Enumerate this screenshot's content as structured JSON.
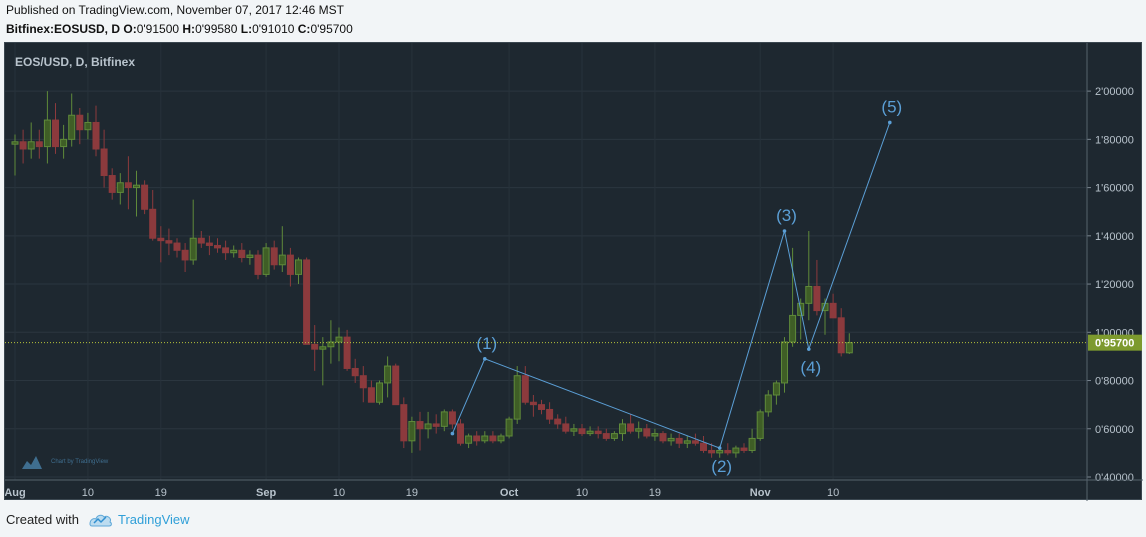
{
  "header": {
    "published": "Published on TradingView.com, November 07, 2017 12:46 MST",
    "symbol": "Bitfinex:EOSUSD, D",
    "o_label": "O:",
    "o_value": "0'91500",
    "h_label": "H:",
    "h_value": "0'99580",
    "l_label": "L:",
    "l_value": "0'91010",
    "c_label": "C:",
    "c_value": "0'95700"
  },
  "footer": {
    "created_with": "Created with",
    "brand": "TradingView"
  },
  "watermark": "Chart by TradingView",
  "colors": {
    "background": "#1e2830",
    "up": "#5f8a3a",
    "up_fill": "#3f5e26",
    "down": "#8c3a3d",
    "down_fill": "#8c3a3d",
    "wave": "#5b9fd6",
    "price_line": "#b6c23a"
  },
  "chart_data": {
    "type": "candlestick",
    "title": "EOS/USD, D, Bitfinex",
    "ylim": [
      0.4,
      2.1
    ],
    "y_ticks": [
      0.4,
      0.6,
      0.8,
      1.0,
      1.2,
      1.4,
      1.6,
      1.8,
      2.0
    ],
    "y_tick_labels": [
      "0'40000",
      "0'60000",
      "0'80000",
      "1'00000",
      "1'20000",
      "1'40000",
      "1'60000",
      "1'80000",
      "2'00000"
    ],
    "x_tick_labels": [
      {
        "date": "2017-08-01",
        "label": "Aug"
      },
      {
        "date": "2017-08-10",
        "label": "10"
      },
      {
        "date": "2017-08-19",
        "label": "19"
      },
      {
        "date": "2017-09-01",
        "label": "Sep"
      },
      {
        "date": "2017-09-10",
        "label": "10"
      },
      {
        "date": "2017-09-19",
        "label": "19"
      },
      {
        "date": "2017-10-01",
        "label": "Oct"
      },
      {
        "date": "2017-10-10",
        "label": "10"
      },
      {
        "date": "2017-10-19",
        "label": "19"
      },
      {
        "date": "2017-11-01",
        "label": "Nov"
      },
      {
        "date": "2017-11-10",
        "label": "10"
      }
    ],
    "first_date": "2017-08-01",
    "last_price": 0.957,
    "last_price_label": "0'95700",
    "candles": [
      [
        1.78,
        1.82,
        1.65,
        1.79
      ],
      [
        1.79,
        1.84,
        1.7,
        1.76
      ],
      [
        1.76,
        1.87,
        1.72,
        1.79
      ],
      [
        1.79,
        1.84,
        1.72,
        1.77
      ],
      [
        1.77,
        2.0,
        1.7,
        1.88
      ],
      [
        1.88,
        1.95,
        1.74,
        1.77
      ],
      [
        1.77,
        1.86,
        1.72,
        1.8
      ],
      [
        1.8,
        1.99,
        1.77,
        1.9
      ],
      [
        1.9,
        1.93,
        1.78,
        1.84
      ],
      [
        1.84,
        1.91,
        1.8,
        1.87
      ],
      [
        1.87,
        1.94,
        1.73,
        1.76
      ],
      [
        1.76,
        1.84,
        1.6,
        1.65
      ],
      [
        1.65,
        1.68,
        1.55,
        1.58
      ],
      [
        1.58,
        1.66,
        1.53,
        1.62
      ],
      [
        1.62,
        1.73,
        1.51,
        1.6
      ],
      [
        1.6,
        1.67,
        1.48,
        1.61
      ],
      [
        1.61,
        1.63,
        1.49,
        1.51
      ],
      [
        1.51,
        1.59,
        1.38,
        1.39
      ],
      [
        1.39,
        1.44,
        1.29,
        1.38
      ],
      [
        1.38,
        1.43,
        1.32,
        1.37
      ],
      [
        1.37,
        1.39,
        1.31,
        1.34
      ],
      [
        1.34,
        1.37,
        1.25,
        1.3
      ],
      [
        1.3,
        1.55,
        1.28,
        1.39
      ],
      [
        1.39,
        1.42,
        1.35,
        1.37
      ],
      [
        1.37,
        1.4,
        1.32,
        1.36
      ],
      [
        1.36,
        1.39,
        1.33,
        1.35
      ],
      [
        1.35,
        1.38,
        1.3,
        1.33
      ],
      [
        1.33,
        1.36,
        1.31,
        1.34
      ],
      [
        1.34,
        1.37,
        1.29,
        1.31
      ],
      [
        1.31,
        1.34,
        1.28,
        1.32
      ],
      [
        1.32,
        1.34,
        1.22,
        1.24
      ],
      [
        1.24,
        1.37,
        1.23,
        1.35
      ],
      [
        1.35,
        1.38,
        1.26,
        1.28
      ],
      [
        1.28,
        1.44,
        1.25,
        1.32
      ],
      [
        1.32,
        1.35,
        1.19,
        1.24
      ],
      [
        1.24,
        1.31,
        1.2,
        1.3
      ],
      [
        1.3,
        1.31,
        0.96,
        0.95
      ],
      [
        0.95,
        1.03,
        0.84,
        0.93
      ],
      [
        0.93,
        0.98,
        0.78,
        0.94
      ],
      [
        0.94,
        1.05,
        0.87,
        0.96
      ],
      [
        0.96,
        1.02,
        0.88,
        0.98
      ],
      [
        0.98,
        1.01,
        0.84,
        0.85
      ],
      [
        0.85,
        0.89,
        0.79,
        0.82
      ],
      [
        0.82,
        0.86,
        0.71,
        0.77
      ],
      [
        0.77,
        0.8,
        0.72,
        0.71
      ],
      [
        0.71,
        0.8,
        0.7,
        0.79
      ],
      [
        0.79,
        0.9,
        0.73,
        0.86
      ],
      [
        0.86,
        0.87,
        0.7,
        0.7
      ],
      [
        0.7,
        0.73,
        0.52,
        0.55
      ],
      [
        0.55,
        0.65,
        0.5,
        0.63
      ],
      [
        0.63,
        0.67,
        0.51,
        0.6
      ],
      [
        0.6,
        0.67,
        0.56,
        0.62
      ],
      [
        0.62,
        0.66,
        0.58,
        0.61
      ],
      [
        0.61,
        0.68,
        0.59,
        0.67
      ],
      [
        0.67,
        0.68,
        0.6,
        0.62
      ],
      [
        0.62,
        0.64,
        0.53,
        0.54
      ],
      [
        0.54,
        0.58,
        0.52,
        0.57
      ],
      [
        0.57,
        0.59,
        0.53,
        0.55
      ],
      [
        0.55,
        0.59,
        0.54,
        0.57
      ],
      [
        0.57,
        0.59,
        0.54,
        0.55
      ],
      [
        0.55,
        0.58,
        0.54,
        0.57
      ],
      [
        0.57,
        0.65,
        0.56,
        0.64
      ],
      [
        0.64,
        0.86,
        0.62,
        0.82
      ],
      [
        0.82,
        0.86,
        0.7,
        0.71
      ],
      [
        0.71,
        0.74,
        0.65,
        0.7
      ],
      [
        0.7,
        0.72,
        0.66,
        0.68
      ],
      [
        0.68,
        0.71,
        0.62,
        0.64
      ],
      [
        0.64,
        0.66,
        0.6,
        0.62
      ],
      [
        0.62,
        0.65,
        0.58,
        0.59
      ],
      [
        0.59,
        0.62,
        0.57,
        0.6
      ],
      [
        0.6,
        0.62,
        0.57,
        0.58
      ],
      [
        0.58,
        0.61,
        0.57,
        0.59
      ],
      [
        0.59,
        0.61,
        0.56,
        0.58
      ],
      [
        0.58,
        0.6,
        0.55,
        0.56
      ],
      [
        0.56,
        0.59,
        0.55,
        0.58
      ],
      [
        0.58,
        0.64,
        0.55,
        0.62
      ],
      [
        0.62,
        0.66,
        0.58,
        0.59
      ],
      [
        0.59,
        0.63,
        0.56,
        0.6
      ],
      [
        0.6,
        0.62,
        0.56,
        0.57
      ],
      [
        0.57,
        0.6,
        0.55,
        0.58
      ],
      [
        0.58,
        0.59,
        0.54,
        0.55
      ],
      [
        0.55,
        0.58,
        0.53,
        0.56
      ],
      [
        0.56,
        0.58,
        0.52,
        0.54
      ],
      [
        0.54,
        0.57,
        0.52,
        0.55
      ],
      [
        0.55,
        0.58,
        0.53,
        0.54
      ],
      [
        0.54,
        0.57,
        0.5,
        0.51
      ],
      [
        0.51,
        0.54,
        0.48,
        0.5
      ],
      [
        0.5,
        0.53,
        0.48,
        0.51
      ],
      [
        0.51,
        0.54,
        0.49,
        0.5
      ],
      [
        0.5,
        0.53,
        0.48,
        0.52
      ],
      [
        0.52,
        0.54,
        0.5,
        0.51
      ],
      [
        0.51,
        0.6,
        0.5,
        0.56
      ],
      [
        0.56,
        0.68,
        0.55,
        0.67
      ],
      [
        0.67,
        0.76,
        0.65,
        0.74
      ],
      [
        0.74,
        0.8,
        0.7,
        0.79
      ],
      [
        0.79,
        0.98,
        0.75,
        0.96
      ],
      [
        0.96,
        1.35,
        0.94,
        1.07
      ],
      [
        1.07,
        1.14,
        0.97,
        1.12
      ],
      [
        1.12,
        1.42,
        1.05,
        1.19
      ],
      [
        1.19,
        1.3,
        1.07,
        1.09
      ],
      [
        1.09,
        1.14,
        0.99,
        1.12
      ],
      [
        1.12,
        1.16,
        1.06,
        1.06
      ],
      [
        1.06,
        1.1,
        0.9,
        0.915
      ],
      [
        0.915,
        0.996,
        0.91,
        0.957
      ]
    ]
  },
  "waves": [
    {
      "label": "(1)",
      "date": "2017-09-28",
      "price": 0.89
    },
    {
      "label": "(2)",
      "date": "2017-10-27",
      "price": 0.52
    },
    {
      "label": "(3)",
      "date": "2017-11-04",
      "price": 1.42
    },
    {
      "label": "(4)",
      "date": "2017-11-07",
      "price": 0.93
    },
    {
      "label": "(5)",
      "date": "2017-11-17",
      "price": 1.87
    }
  ],
  "wave_start": {
    "date": "2017-09-24",
    "price": 0.58
  }
}
